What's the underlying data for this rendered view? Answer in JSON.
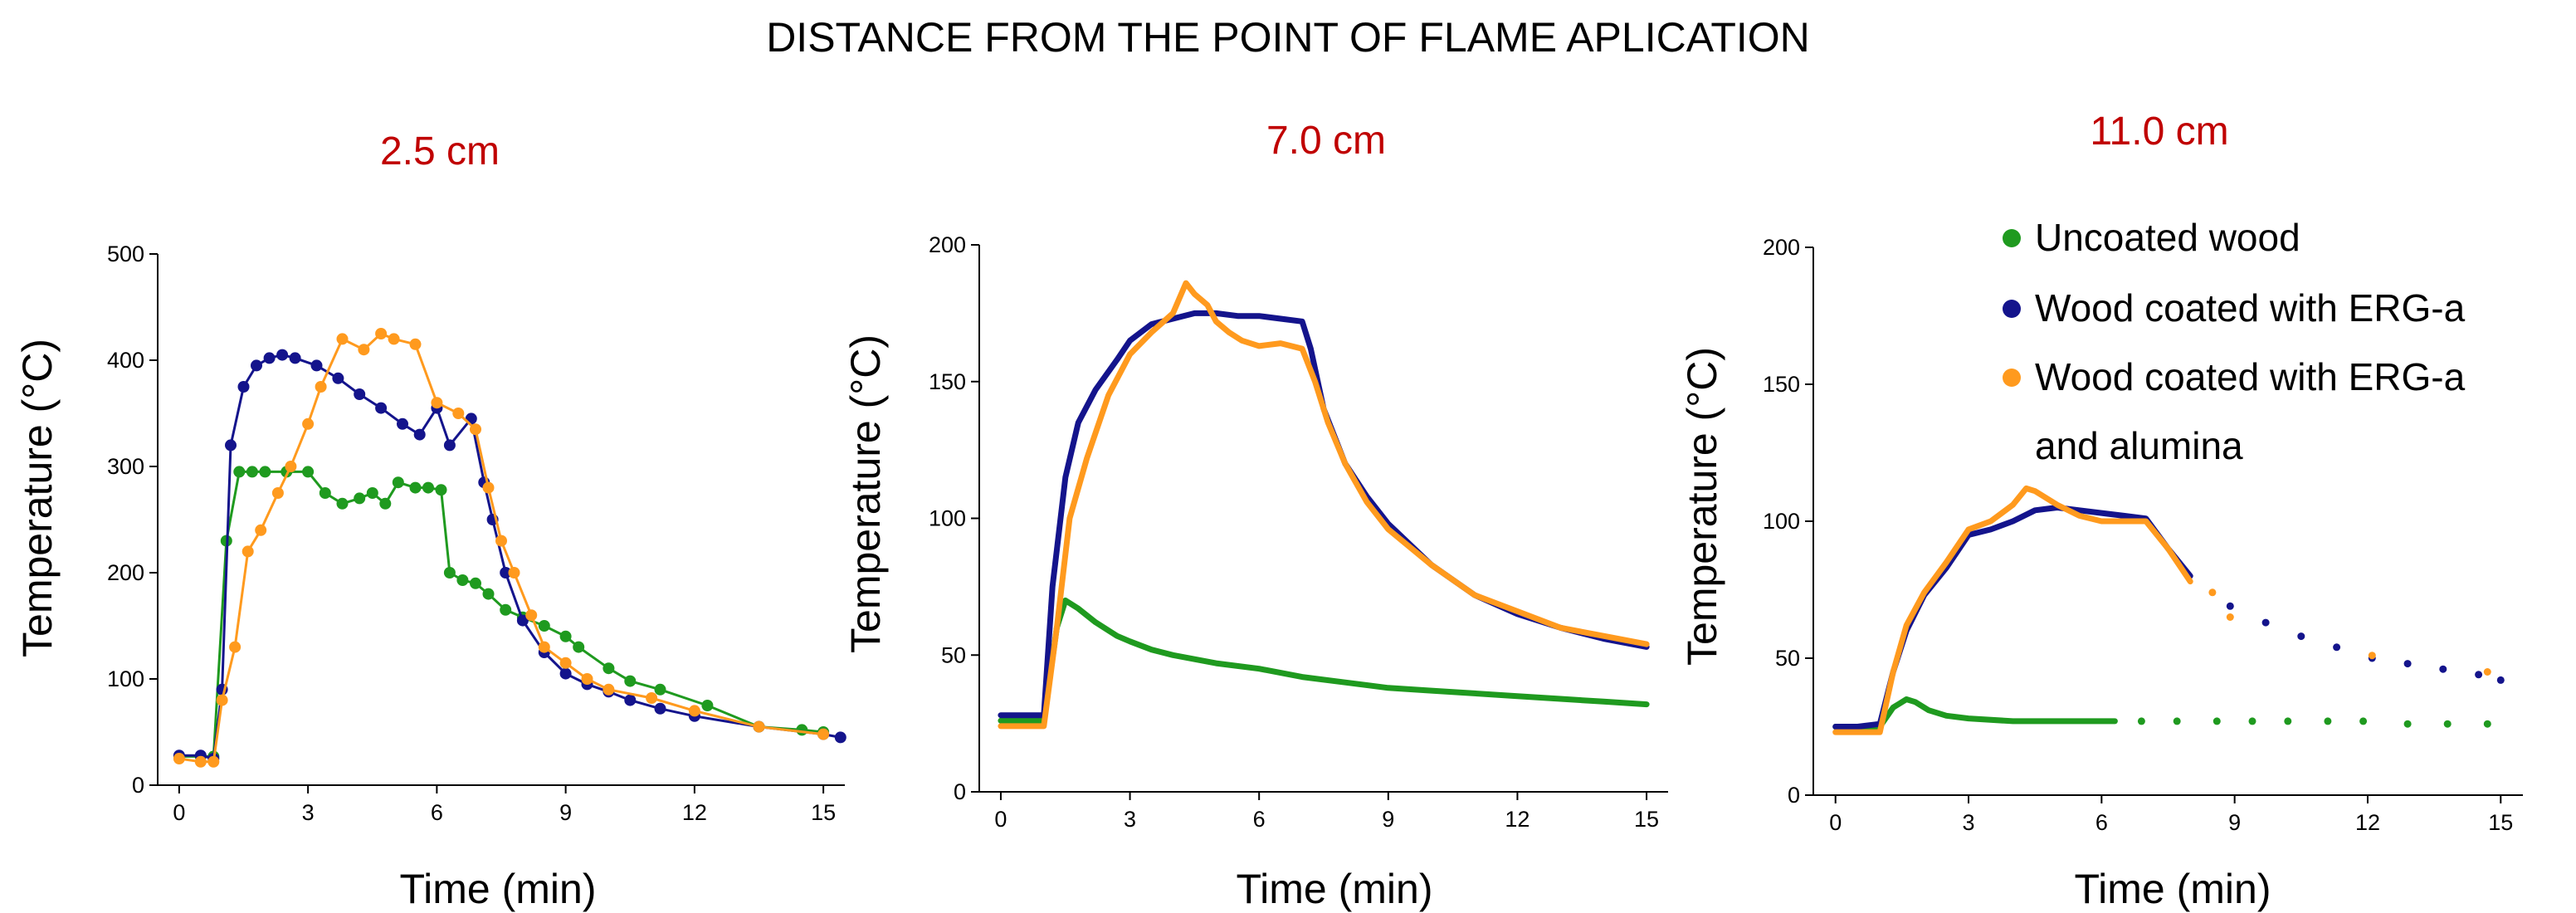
{
  "figure": {
    "title": "DISTANCE FROM THE POINT OF FLAME APLICATION"
  },
  "colors": {
    "uncoated": "#1f9a1f",
    "erg_a": "#14148c",
    "erg_a_alumina": "#ff9a1e",
    "subtitle": "#c00000"
  },
  "legend": {
    "items": [
      {
        "key": "uncoated",
        "label": "Uncoated wood"
      },
      {
        "key": "erg_a",
        "label": "Wood coated with ERG-a"
      },
      {
        "key": "erg_a_alumina",
        "label": "Wood coated with ERG-a",
        "label2": "and alumina"
      }
    ]
  },
  "chart_data": [
    {
      "type": "line",
      "title": "2.5 cm",
      "xlabel": "Time (min)",
      "ylabel": "Temperature (°C)",
      "xlim": [
        -0.5,
        15.5
      ],
      "ylim": [
        0,
        500
      ],
      "xticks": [
        0,
        3,
        6,
        9,
        12,
        15
      ],
      "yticks": [
        0,
        100,
        200,
        300,
        400,
        500
      ],
      "series": [
        {
          "key": "uncoated",
          "style": "dots-line",
          "x": [
            0,
            0.5,
            0.8,
            1.1,
            1.4,
            1.7,
            2.0,
            2.5,
            3.0,
            3.4,
            3.8,
            4.2,
            4.5,
            4.8,
            5.1,
            5.5,
            5.8,
            6.1,
            6.3,
            6.6,
            6.9,
            7.2,
            7.6,
            8.0,
            8.5,
            9.0,
            9.3,
            10.0,
            10.5,
            11.2,
            12.3,
            13.5,
            14.5,
            15.0
          ],
          "y": [
            27,
            27,
            27,
            230,
            295,
            295,
            295,
            295,
            295,
            275,
            265,
            270,
            275,
            265,
            285,
            280,
            280,
            278,
            200,
            193,
            190,
            180,
            165,
            158,
            150,
            140,
            130,
            110,
            98,
            90,
            75,
            55,
            52,
            50
          ]
        },
        {
          "key": "erg_a",
          "style": "dots-line",
          "x": [
            0,
            0.5,
            0.8,
            1.0,
            1.2,
            1.5,
            1.8,
            2.1,
            2.4,
            2.7,
            3.2,
            3.7,
            4.2,
            4.7,
            5.2,
            5.6,
            6.0,
            6.3,
            6.8,
            7.1,
            7.3,
            7.6,
            8.0,
            8.5,
            9.0,
            9.5,
            10.0,
            10.5,
            11.2,
            12.0,
            13.5,
            15.0,
            15.4
          ],
          "y": [
            28,
            28,
            25,
            90,
            320,
            375,
            395,
            402,
            405,
            402,
            395,
            383,
            368,
            355,
            340,
            330,
            355,
            320,
            345,
            285,
            250,
            200,
            155,
            125,
            105,
            95,
            88,
            80,
            72,
            65,
            55,
            48,
            45
          ]
        },
        {
          "key": "erg_a_alumina",
          "style": "dots-line",
          "x": [
            0,
            0.5,
            0.8,
            1.0,
            1.3,
            1.6,
            1.9,
            2.3,
            2.6,
            3.0,
            3.3,
            3.8,
            4.3,
            4.7,
            5.0,
            5.5,
            6.0,
            6.5,
            6.9,
            7.2,
            7.5,
            7.8,
            8.2,
            8.5,
            9.0,
            9.5,
            10.0,
            11.0,
            12.0,
            13.5,
            15.0
          ],
          "y": [
            25,
            22,
            22,
            80,
            130,
            220,
            240,
            275,
            300,
            340,
            375,
            420,
            410,
            425,
            420,
            415,
            360,
            350,
            335,
            280,
            230,
            200,
            160,
            130,
            115,
            100,
            90,
            82,
            70,
            55,
            48
          ]
        }
      ]
    },
    {
      "type": "line",
      "title": "7.0 cm",
      "xlabel": "Time (min)",
      "ylabel": "Temperature (°C)",
      "xlim": [
        -0.5,
        15.5
      ],
      "ylim": [
        0,
        200
      ],
      "xticks": [
        0,
        3,
        6,
        9,
        12,
        15
      ],
      "yticks": [
        0,
        50,
        100,
        150,
        200
      ],
      "series": [
        {
          "key": "uncoated",
          "style": "line",
          "x": [
            0,
            0.5,
            1.0,
            1.3,
            1.5,
            1.8,
            2.2,
            2.7,
            3.0,
            3.5,
            4.0,
            5.0,
            6.0,
            7.0,
            8.0,
            9.0,
            10.0,
            11.0,
            12.0,
            13.0,
            14.0,
            15.0
          ],
          "y": [
            26,
            26,
            26,
            60,
            70,
            67,
            62,
            57,
            55,
            52,
            50,
            47,
            45,
            42,
            40,
            38,
            37,
            36,
            35,
            34,
            33,
            32
          ]
        },
        {
          "key": "erg_a",
          "style": "line",
          "x": [
            0,
            0.5,
            1.0,
            1.2,
            1.5,
            1.8,
            2.2,
            2.7,
            3.0,
            3.5,
            4.0,
            4.5,
            5.0,
            5.5,
            6.0,
            6.5,
            7.0,
            7.2,
            7.5,
            8.0,
            8.5,
            9.0,
            10.0,
            11.0,
            12.0,
            13.0,
            14.0,
            15.0
          ],
          "y": [
            28,
            28,
            28,
            75,
            115,
            135,
            147,
            158,
            165,
            171,
            173,
            175,
            175,
            174,
            174,
            173,
            172,
            162,
            140,
            120,
            108,
            98,
            83,
            72,
            65,
            60,
            56,
            53
          ]
        },
        {
          "key": "erg_a_alumina",
          "style": "line",
          "x": [
            0,
            0.5,
            1.0,
            1.3,
            1.6,
            2.0,
            2.5,
            3.0,
            3.5,
            4.0,
            4.3,
            4.5,
            4.8,
            5.0,
            5.3,
            5.6,
            6.0,
            6.5,
            7.0,
            7.3,
            7.6,
            8.0,
            8.5,
            9.0,
            10.0,
            11.0,
            12.0,
            13.0,
            14.0,
            15.0
          ],
          "y": [
            24,
            24,
            24,
            60,
            100,
            122,
            145,
            160,
            168,
            175,
            186,
            182,
            178,
            172,
            168,
            165,
            163,
            164,
            162,
            150,
            135,
            120,
            106,
            96,
            83,
            72,
            66,
            60,
            57,
            54
          ]
        }
      ]
    },
    {
      "type": "line",
      "title": "11.0 cm",
      "xlabel": "Time (min)",
      "ylabel": "Temperature (°C)",
      "xlim": [
        -0.5,
        15.5
      ],
      "ylim": [
        0,
        200
      ],
      "xticks": [
        0,
        3,
        6,
        9,
        12,
        15
      ],
      "yticks": [
        0,
        50,
        100,
        150,
        200
      ],
      "series": [
        {
          "key": "uncoated",
          "style": "line",
          "x": [
            0,
            0.5,
            1.0,
            1.3,
            1.6,
            1.8,
            2.1,
            2.5,
            3.0,
            4.0,
            5.0,
            6.3
          ],
          "y": [
            25,
            25,
            25,
            32,
            35,
            34,
            31,
            29,
            28,
            27,
            27,
            27
          ]
        },
        {
          "key": "uncoated",
          "style": "dots",
          "x": [
            6.9,
            7.7,
            8.6,
            9.4,
            10.2,
            11.1,
            11.9,
            12.9,
            13.8,
            14.7
          ],
          "y": [
            27,
            27,
            27,
            27,
            27,
            27,
            27,
            26,
            26,
            26
          ]
        },
        {
          "key": "erg_a",
          "style": "line",
          "x": [
            0,
            0.5,
            1.0,
            1.3,
            1.6,
            2.0,
            2.5,
            3.0,
            3.5,
            4.0,
            4.5,
            5.0,
            5.5,
            6.0,
            6.5,
            7.0,
            7.5,
            8.0
          ],
          "y": [
            25,
            25,
            26,
            45,
            60,
            73,
            83,
            95,
            97,
            100,
            104,
            105,
            104,
            103,
            102,
            101,
            90,
            80
          ]
        },
        {
          "key": "erg_a",
          "style": "dots",
          "x": [
            8.9,
            9.7,
            10.5,
            11.3,
            12.1,
            12.9,
            13.7,
            14.5,
            15.0
          ],
          "y": [
            69,
            63,
            58,
            54,
            50,
            48,
            46,
            44,
            42
          ]
        },
        {
          "key": "erg_a_alumina",
          "style": "line",
          "x": [
            0,
            0.5,
            1.0,
            1.3,
            1.6,
            2.0,
            2.5,
            3.0,
            3.5,
            4.0,
            4.3,
            4.5,
            5.0,
            5.5,
            6.0,
            6.5,
            7.0,
            7.5,
            8.0
          ],
          "y": [
            23,
            23,
            23,
            45,
            62,
            74,
            85,
            97,
            100,
            106,
            112,
            111,
            106,
            102,
            100,
            100,
            100,
            90,
            78
          ]
        },
        {
          "key": "erg_a_alumina",
          "style": "dots",
          "x": [
            8.5,
            8.9,
            12.1,
            14.7
          ],
          "y": [
            74,
            65,
            51,
            45
          ]
        }
      ]
    }
  ]
}
